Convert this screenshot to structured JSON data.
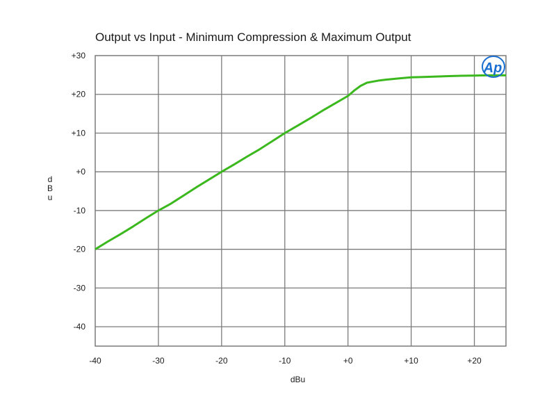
{
  "chart_data": {
    "type": "line",
    "title": "Output vs Input - Minimum Compression & Maximum Output",
    "xlabel": "dBu",
    "ylabel": "dBu",
    "xlim": [
      -40,
      25
    ],
    "ylim": [
      -45,
      30
    ],
    "x_ticks": [
      {
        "value": -40,
        "label": "-40"
      },
      {
        "value": -30,
        "label": "-30"
      },
      {
        "value": -20,
        "label": "-20"
      },
      {
        "value": -10,
        "label": "-10"
      },
      {
        "value": 0,
        "label": "+0"
      },
      {
        "value": 10,
        "label": "+10"
      },
      {
        "value": 20,
        "label": "+20"
      }
    ],
    "y_ticks": [
      {
        "value": 30,
        "label": "+30"
      },
      {
        "value": 20,
        "label": "+20"
      },
      {
        "value": 10,
        "label": "+10"
      },
      {
        "value": 0,
        "label": "+0"
      },
      {
        "value": -10,
        "label": "-10"
      },
      {
        "value": -20,
        "label": "-20"
      },
      {
        "value": -30,
        "label": "-30"
      },
      {
        "value": -40,
        "label": "-40"
      }
    ],
    "grid": true,
    "line_color": "#3cb81f",
    "grid_color": "#7a7a7a",
    "series": [
      {
        "x": [
          -40,
          -38,
          -36,
          -34,
          -32,
          -30,
          -28,
          -26,
          -24,
          -22,
          -20,
          -18,
          -16,
          -14,
          -12,
          -10,
          -8,
          -6,
          -4,
          -2,
          0,
          1,
          2,
          3,
          4,
          5,
          6,
          8,
          10,
          12,
          14,
          16,
          18,
          20,
          22,
          25
        ],
        "y": [
          -20,
          -18,
          -16.1,
          -14.1,
          -12,
          -10,
          -8.2,
          -6.1,
          -4,
          -2,
          0,
          1.9,
          3.9,
          5.8,
          7.9,
          10,
          11.9,
          13.8,
          15.8,
          17.7,
          19.6,
          21,
          22.2,
          23,
          23.3,
          23.6,
          23.8,
          24.1,
          24.4,
          24.5,
          24.6,
          24.7,
          24.8,
          24.85,
          24.9,
          24.9
        ]
      }
    ],
    "logo_text": "Ap",
    "logo_color": "#1a6fd1"
  }
}
